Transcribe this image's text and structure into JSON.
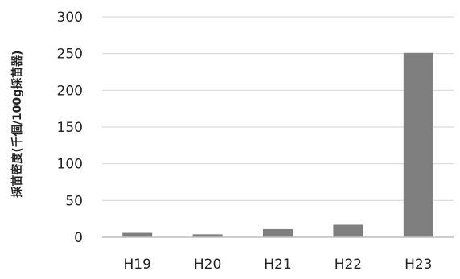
{
  "chart_data": {
    "type": "bar",
    "categories": [
      "H19",
      "H20",
      "H21",
      "H22",
      "H23"
    ],
    "values": [
      6,
      4,
      11,
      17,
      251
    ],
    "ylabel": "採苗密度(千個/100g採苗器)",
    "ylim": [
      0,
      300
    ],
    "yticks": [
      0,
      50,
      100,
      150,
      200,
      250,
      300
    ],
    "grid": true,
    "legend": "none",
    "colors": {
      "bar": "#7f7f7f",
      "grid": "#d9d9d9",
      "axis": "#bfbfbf"
    }
  }
}
